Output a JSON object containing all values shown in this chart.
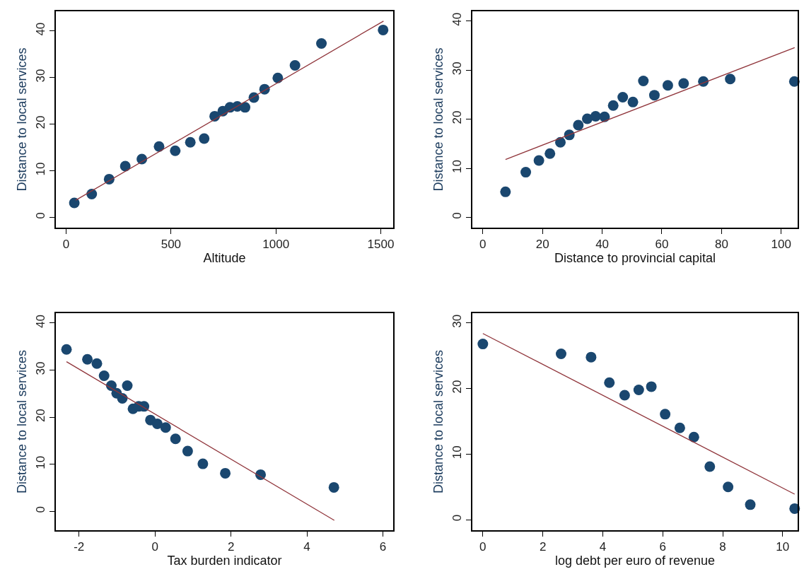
{
  "chart_data": [
    {
      "type": "scatter",
      "xlabel": "Altitude",
      "ylabel": "Distance to local services",
      "xlim": [
        -49,
        1559
      ],
      "ylim": [
        -2.2,
        44.2
      ],
      "xticks": [
        0,
        500,
        1000,
        1500
      ],
      "yticks": [
        0,
        10,
        20,
        30,
        40
      ],
      "series": [
        {
          "marker": "circle",
          "color": "#1a476f",
          "x": [
            39,
            122,
            205,
            282,
            361,
            443,
            520,
            592,
            658,
            708,
            747,
            781,
            816,
            853,
            895,
            946,
            1009,
            1091,
            1217,
            1511
          ],
          "values": [
            3.1,
            5.0,
            8.2,
            11.0,
            12.5,
            15.2,
            14.3,
            16.1,
            16.9,
            21.7,
            22.8,
            23.6,
            23.8,
            23.6,
            25.7,
            27.5,
            29.9,
            32.6,
            37.3,
            40.2
          ]
        },
        {
          "type": "line",
          "color": "#90353b",
          "x": [
            46,
            1513
          ],
          "values": [
            3.7,
            42.1
          ]
        }
      ]
    },
    {
      "type": "scatter",
      "xlabel": "Distance to provincial capital",
      "ylabel": "Distance to local services",
      "xlim": [
        -3.5,
        105.5
      ],
      "ylim": [
        -2.1,
        42
      ],
      "xticks": [
        0,
        20,
        40,
        60,
        80,
        100
      ],
      "yticks": [
        0,
        10,
        20,
        30,
        40
      ],
      "series": [
        {
          "marker": "circle",
          "color": "#1a476f",
          "x": [
            7.6,
            14.4,
            18.8,
            22.5,
            26.0,
            29.0,
            32.0,
            35.0,
            37.8,
            40.8,
            43.7,
            46.9,
            50.3,
            53.8,
            57.5,
            62.0,
            67.3,
            73.9,
            82.9,
            104.4
          ],
          "values": [
            5.2,
            9.2,
            11.6,
            13.0,
            15.3,
            16.8,
            18.8,
            20.1,
            20.6,
            20.5,
            22.8,
            24.5,
            23.5,
            27.8,
            24.9,
            26.9,
            27.3,
            27.7,
            28.2,
            27.7
          ]
        },
        {
          "type": "line",
          "color": "#90353b",
          "x": [
            7.6,
            104.5
          ],
          "values": [
            11.8,
            34.6
          ]
        }
      ]
    },
    {
      "type": "scatter",
      "xlabel": "Tax burden indicator",
      "ylabel": "Distance to local services",
      "xlim": [
        -2.61,
        6.27
      ],
      "ylim": [
        -4.0,
        42.1
      ],
      "xticks": [
        -2,
        0,
        2,
        4,
        6
      ],
      "yticks": [
        0,
        10,
        20,
        30,
        40
      ],
      "series": [
        {
          "marker": "circle",
          "color": "#1a476f",
          "x": [
            -2.33,
            -1.78,
            -1.53,
            -1.34,
            -1.15,
            -1.01,
            -0.86,
            -0.73,
            -0.58,
            -0.43,
            -0.29,
            -0.12,
            0.06,
            0.28,
            0.54,
            0.86,
            1.26,
            1.85,
            2.78,
            4.71
          ],
          "values": [
            34.4,
            32.3,
            31.4,
            28.8,
            26.7,
            25.1,
            24.0,
            26.7,
            21.8,
            22.3,
            22.3,
            19.4,
            18.6,
            17.8,
            15.4,
            12.8,
            10.1,
            8.1,
            7.8,
            5.1
          ]
        },
        {
          "type": "line",
          "color": "#90353b",
          "x": [
            -2.33,
            4.72
          ],
          "values": [
            31.8,
            -1.9
          ]
        }
      ]
    },
    {
      "type": "scatter",
      "xlabel": "log debt per euro of revenue",
      "ylabel": "Distance to local services",
      "xlim": [
        -0.35,
        10.5
      ],
      "ylim": [
        -1.6,
        31.5
      ],
      "xticks": [
        0,
        2,
        4,
        6,
        8,
        10
      ],
      "yticks": [
        0,
        10,
        20,
        30
      ],
      "series": [
        {
          "marker": "circle",
          "color": "#1a476f",
          "x": [
            0,
            2.61,
            3.61,
            4.22,
            4.73,
            5.2,
            5.62,
            6.08,
            6.57,
            7.04,
            7.57,
            8.18,
            8.92,
            10.4
          ],
          "values": [
            26.8,
            25.3,
            24.8,
            20.9,
            19.0,
            19.8,
            20.3,
            16.1,
            14.0,
            12.6,
            8.1,
            5.0,
            2.3,
            1.7
          ]
        },
        {
          "type": "line",
          "color": "#90353b",
          "x": [
            0,
            10.4
          ],
          "values": [
            28.4,
            3.9
          ]
        }
      ]
    }
  ]
}
